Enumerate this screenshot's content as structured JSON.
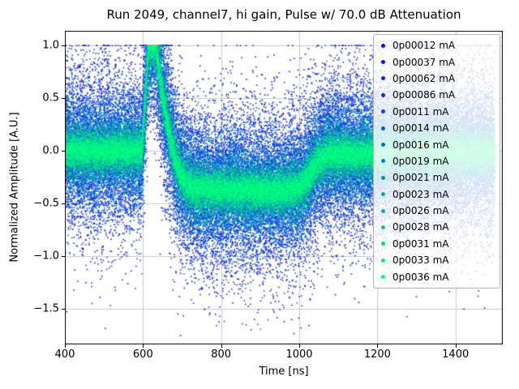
{
  "figure": {
    "title": "Run 2049, channel7, hi gain, Pulse w/ 70.0 dB Attenuation"
  },
  "chart_data": {
    "type": "scatter",
    "title": "Run 2049, channel7, hi gain, Pulse w/ 70.0 dB Attenuation",
    "xlabel": "Time [ns]",
    "ylabel": "Normalized Amplitude [A.U.]",
    "xlim": [
      400,
      1521
    ],
    "ylim": [
      -1.84,
      1.14
    ],
    "xticks": [
      400,
      600,
      800,
      1000,
      1200,
      1400
    ],
    "yticks": [
      1.0,
      0.5,
      0.0,
      -0.5,
      -1.0,
      -1.5
    ],
    "grid": true,
    "grid_color": "#c9c9c9",
    "legend_position": "upper right",
    "x_range": [
      400,
      1500
    ],
    "points_per_series": 5500,
    "clip_max": 1.0,
    "marker_size_px": 1.6,
    "pulse_shape_keypoints": [
      [
        400,
        0.0
      ],
      [
        597,
        0.0
      ],
      [
        614,
        1.0
      ],
      [
        633,
        1.0
      ],
      [
        642,
        0.72
      ],
      [
        656,
        0.38
      ],
      [
        670,
        0.1
      ],
      [
        686,
        -0.14
      ],
      [
        706,
        -0.29
      ],
      [
        732,
        -0.36
      ],
      [
        950,
        -0.38
      ],
      [
        1000,
        -0.355
      ],
      [
        1022,
        -0.24
      ],
      [
        1048,
        -0.1
      ],
      [
        1078,
        -0.03
      ],
      [
        1500,
        -0.02
      ]
    ],
    "series": [
      {
        "label": "0p00012 mA",
        "color": "#0000ff",
        "noise_sigma": 0.48
      },
      {
        "label": "0p00037 mA",
        "color": "#0012f6",
        "noise_sigma": 0.44
      },
      {
        "label": "0p00062 mA",
        "color": "#0024ed",
        "noise_sigma": 0.4
      },
      {
        "label": "0p00086 mA",
        "color": "#0037e4",
        "noise_sigma": 0.36
      },
      {
        "label": "0p0011 mA",
        "color": "#0049db",
        "noise_sigma": 0.32
      },
      {
        "label": "0p0014 mA",
        "color": "#005bd1",
        "noise_sigma": 0.29
      },
      {
        "label": "0p0016 mA",
        "color": "#006dc8",
        "noise_sigma": 0.25
      },
      {
        "label": "0p0019 mA",
        "color": "#0080bf",
        "noise_sigma": 0.22
      },
      {
        "label": "0p0021 mA",
        "color": "#0092b6",
        "noise_sigma": 0.19
      },
      {
        "label": "0p0023 mA",
        "color": "#00a4ad",
        "noise_sigma": 0.16
      },
      {
        "label": "0p0026 mA",
        "color": "#00b6a4",
        "noise_sigma": 0.13
      },
      {
        "label": "0p0028 mA",
        "color": "#00c89b",
        "noise_sigma": 0.11
      },
      {
        "label": "0p0031 mA",
        "color": "#00db91",
        "noise_sigma": 0.09
      },
      {
        "label": "0p0033 mA",
        "color": "#00ed88",
        "noise_sigma": 0.07
      },
      {
        "label": "0p0036 mA",
        "color": "#00ff80",
        "noise_sigma": 0.06
      }
    ]
  }
}
